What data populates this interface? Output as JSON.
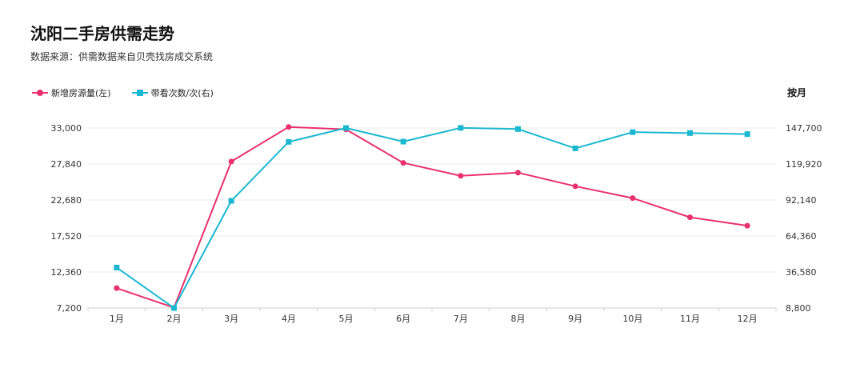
{
  "header": {
    "title": "沈阳二手房供需走势",
    "subtitle": "数据来源：供需数据来自贝壳找房成交系统"
  },
  "period_label": "按月",
  "colors": {
    "series1": "#e8306e",
    "series2": "#1ab8d0",
    "grid": "#eeeeee"
  },
  "chart_data": {
    "type": "line",
    "title": "沈阳二手房供需走势",
    "categories": [
      "1月",
      "2月",
      "3月",
      "4月",
      "5月",
      "6月",
      "7月",
      "8月",
      "9月",
      "10月",
      "11月",
      "12月"
    ],
    "y_left": {
      "ylim": [
        7200,
        33000
      ],
      "ticks": [
        7200,
        12360,
        17520,
        22680,
        27840,
        33000
      ],
      "tick_labels": [
        "7,200",
        "12,360",
        "17,520",
        "22,680",
        "27,840",
        "33,000"
      ]
    },
    "y_right": {
      "ylim": [
        8800,
        147700
      ],
      "ticks": [
        8800,
        36580,
        64360,
        92140,
        119920,
        147700
      ],
      "tick_labels": [
        "8,800",
        "36,580",
        "64,360",
        "92,140",
        "119,920",
        "147,700"
      ]
    },
    "grid": true,
    "legend": "top-left",
    "series": [
      {
        "name": "新增房源量(左)",
        "axis": "left",
        "marker": "circle",
        "values": [
          10050,
          7250,
          28200,
          33150,
          32800,
          28000,
          26150,
          26600,
          24650,
          22950,
          20200,
          19000
        ]
      },
      {
        "name": "带看次数/次(右)",
        "axis": "right",
        "marker": "square",
        "values": [
          40000,
          8800,
          91500,
          137000,
          147700,
          137200,
          147800,
          146900,
          132000,
          144500,
          143800,
          143000
        ]
      }
    ]
  }
}
